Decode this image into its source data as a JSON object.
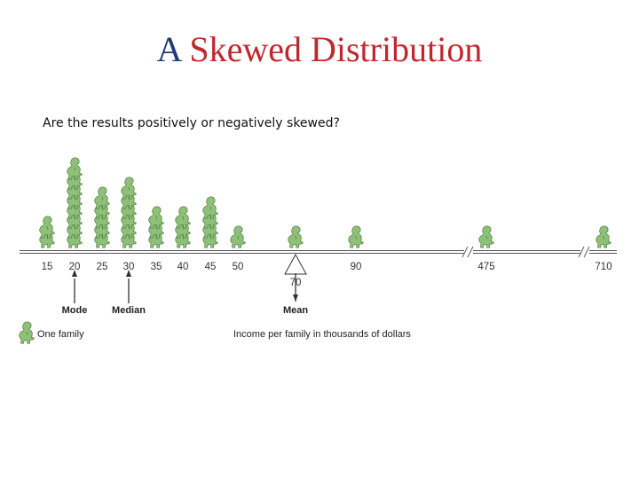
{
  "slide": {
    "title_part1": "A",
    "title_part2": "Skewed Distribution",
    "question": "Are the results positively or negatively skewed?",
    "title_color_1": "#1f3a78",
    "title_color_2": "#c0282d"
  },
  "chart_data": {
    "type": "pictograph",
    "title": "",
    "xlabel": "Income per family in thousands of dollars",
    "ylabel": "",
    "unit_label": "One family",
    "categories": [
      "15",
      "20",
      "25",
      "30",
      "35",
      "40",
      "45",
      "50",
      "70",
      "90",
      "475",
      "710"
    ],
    "values": [
      2,
      8,
      5,
      6,
      3,
      3,
      4,
      1,
      1,
      1,
      1,
      1
    ],
    "axis_breaks": [
      "90-475",
      "475-710"
    ],
    "markers": [
      {
        "label": "Mode",
        "value": "20"
      },
      {
        "label": "Median",
        "value": "30"
      },
      {
        "label": "Mean",
        "value": "70"
      }
    ],
    "figure_color": "#8fc07a",
    "figure_outline": "#4e7d3e"
  }
}
